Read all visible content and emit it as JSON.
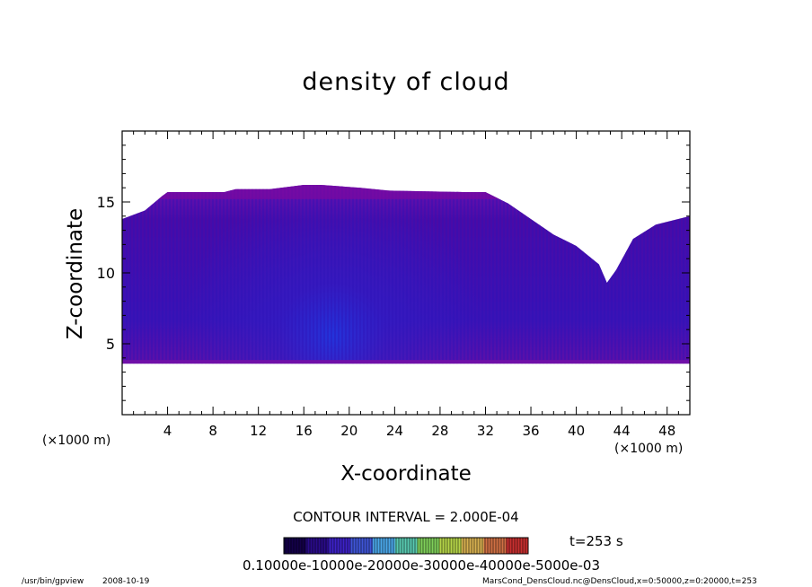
{
  "header": {
    "title": "density of cloud"
  },
  "axes": {
    "xlabel": "X-coordinate",
    "ylabel": "Z-coordinate",
    "x_unit_left": "(×1000 m)",
    "x_unit_right": "(×1000 m)"
  },
  "legend": {
    "contour_interval": "CONTOUR INTERVAL = 2.000E-04",
    "time": "t=253 s",
    "colorbar_labels": "0.10000e-10000e-20000e-30000e-40000e-5000e-03",
    "colorbar_colors": [
      "#14004a",
      "#2a0b8a",
      "#3d22c8",
      "#3f55d8",
      "#4aa6e8",
      "#58c9b0",
      "#7fd05a",
      "#b5d448",
      "#d7b050",
      "#d07044",
      "#c83030"
    ]
  },
  "footer": {
    "left_path": "/usr/bin/gpview",
    "left_date": "2008-10-19",
    "right": "MarsCond_DensCloud.nc@DensCloud,x=0:50000,z=0:20000,t=253"
  },
  "chart_data": {
    "type": "heatmap",
    "title": "density of cloud",
    "xlabel": "X-coordinate",
    "ylabel": "Z-coordinate",
    "x_unit": "(×1000 m)",
    "xlim": [
      0,
      50
    ],
    "ylim": [
      0,
      20
    ],
    "xticks": [
      4,
      8,
      12,
      16,
      20,
      24,
      28,
      32,
      36,
      40,
      44,
      48
    ],
    "yticks": [
      5,
      10,
      15
    ],
    "cloud_base_z": 3.6,
    "cloud_top": {
      "x": [
        0,
        2,
        3.5,
        4,
        9,
        10,
        13,
        16,
        17.5,
        21,
        23.5,
        30,
        32,
        34,
        36,
        38,
        40,
        42,
        42.7,
        43.5,
        45,
        47,
        50
      ],
      "z": [
        13.8,
        14.4,
        15.4,
        15.7,
        15.7,
        15.9,
        15.9,
        16.2,
        16.2,
        16.0,
        15.8,
        15.7,
        15.7,
        14.9,
        13.8,
        12.7,
        11.9,
        10.6,
        9.3,
        10.2,
        12.4,
        13.4,
        14.0
      ]
    },
    "contour_interval": "2.000E-04",
    "time": "t=253 s"
  }
}
